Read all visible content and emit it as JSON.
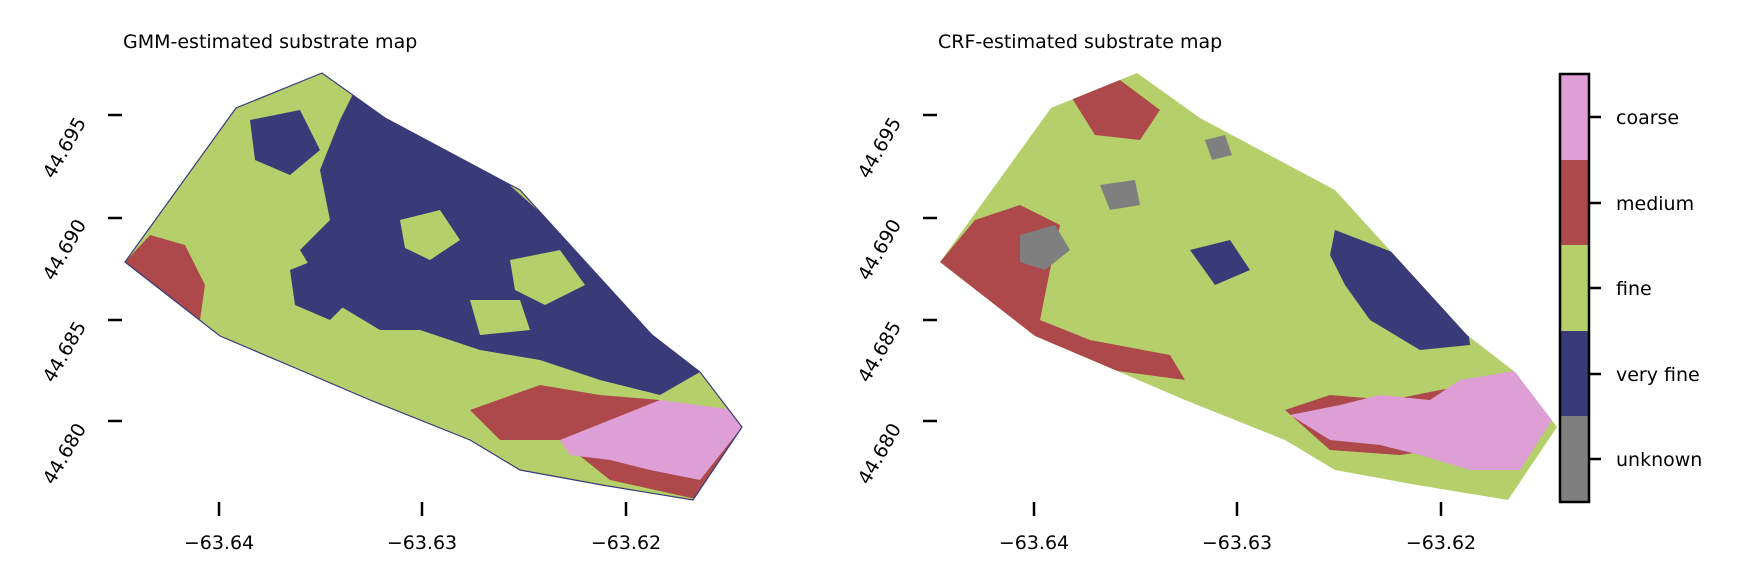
{
  "colors": {
    "unknown": "#7f7f7f",
    "very_fine": "#393b79",
    "fine": "#b5cf6b",
    "medium": "#ad494a",
    "coarse": "#de9ed6",
    "frame": "#000000"
  },
  "panels": [
    {
      "title": "GMM-estimated substrate map",
      "x_ticks": [
        "−63.64",
        "−63.63",
        "−63.62"
      ],
      "y_ticks": [
        "44.680",
        "44.685",
        "44.690",
        "44.695"
      ],
      "dominant_class": "very fine",
      "secondary_class": "fine"
    },
    {
      "title": "CRF-estimated substrate map",
      "x_ticks": [
        "−63.64",
        "−63.63",
        "−63.62"
      ],
      "y_ticks": [
        "44.680",
        "44.685",
        "44.690",
        "44.695"
      ],
      "dominant_class": "fine",
      "secondary_class": "medium"
    }
  ],
  "legend": {
    "items": [
      {
        "label": "coarse",
        "color": "#de9ed6"
      },
      {
        "label": "medium",
        "color": "#ad494a"
      },
      {
        "label": "fine",
        "color": "#b5cf6b"
      },
      {
        "label": "very fine",
        "color": "#393b79"
      },
      {
        "label": "unknown",
        "color": "#7f7f7f"
      }
    ]
  }
}
